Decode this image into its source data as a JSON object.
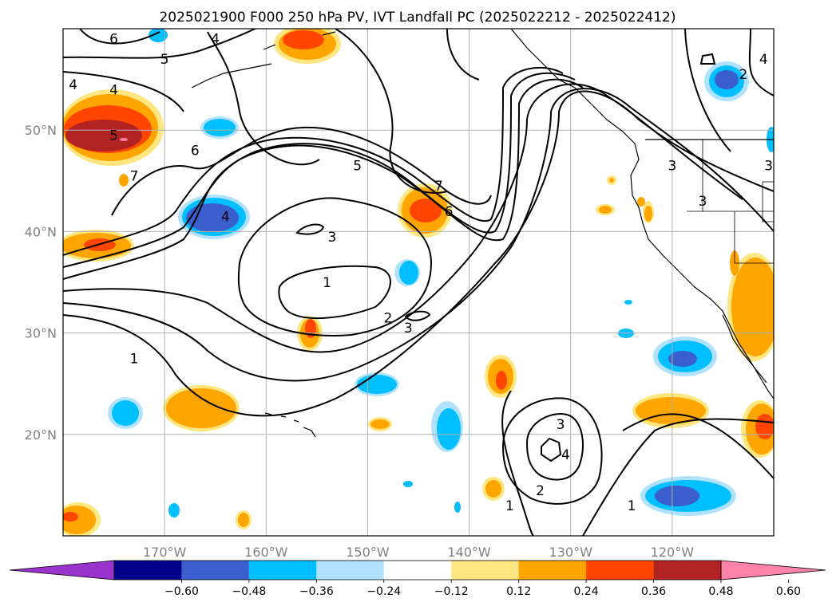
{
  "chart_data": {
    "type": "map-contour",
    "title": "2025021900 F000 250 hPa PV, IVT Landfall PC (2025022212 - 2025022412)",
    "map_extent": {
      "lon": [
        -180,
        -110
      ],
      "lat": [
        10,
        60
      ]
    },
    "grid": true,
    "x_ticks": [
      {
        "lon": -170,
        "label": "170°W"
      },
      {
        "lon": -160,
        "label": "160°W"
      },
      {
        "lon": -150,
        "label": "150°W"
      },
      {
        "lon": -140,
        "label": "140°W"
      },
      {
        "lon": -130,
        "label": "130°W"
      },
      {
        "lon": -120,
        "label": "120°W"
      }
    ],
    "y_ticks": [
      {
        "lat": 20,
        "label": "20°N"
      },
      {
        "lat": 30,
        "label": "30°N"
      },
      {
        "lat": 40,
        "label": "40°N"
      },
      {
        "lat": 50,
        "label": "50°N"
      }
    ],
    "colorbar": {
      "orientation": "horizontal",
      "extend": "both",
      "bounds": [
        -0.72,
        -0.6,
        -0.48,
        -0.36,
        -0.24,
        -0.12,
        0.12,
        0.24,
        0.36,
        0.48,
        0.6,
        0.72
      ],
      "colors": [
        "#9933cc",
        "#00008b",
        "#3a5fcd",
        "#00bfff",
        "#b0e2ff",
        "#ffffff",
        "#ffe680",
        "#ffa500",
        "#ff4500",
        "#b22222",
        "#ff82ab"
      ],
      "tick_values": [
        -0.6,
        -0.48,
        -0.36,
        -0.24,
        -0.12,
        0.12,
        0.24,
        0.36,
        0.48,
        0.6
      ],
      "tick_labels": [
        "−0.60",
        "−0.48",
        "−0.36",
        "−0.24",
        "−0.12",
        "0.12",
        "0.24",
        "0.36",
        "0.48",
        "0.60"
      ]
    },
    "pv_contour_labels": [
      {
        "text": "6",
        "lon": -175.0,
        "lat": 59.0
      },
      {
        "text": "4",
        "lon": -165.0,
        "lat": 59.0
      },
      {
        "text": "5",
        "lon": -170.0,
        "lat": 57.0
      },
      {
        "text": "4",
        "lon": -179.0,
        "lat": 54.5
      },
      {
        "text": "4",
        "lon": -175.0,
        "lat": 54.0
      },
      {
        "text": "5",
        "lon": -175.0,
        "lat": 49.5
      },
      {
        "text": "6",
        "lon": -167.0,
        "lat": 48.0
      },
      {
        "text": "7",
        "lon": -173.0,
        "lat": 45.5
      },
      {
        "text": "4",
        "lon": -164.0,
        "lat": 41.5
      },
      {
        "text": "5",
        "lon": -151.0,
        "lat": 46.5
      },
      {
        "text": "3",
        "lon": -153.5,
        "lat": 39.5
      },
      {
        "text": "7",
        "lon": -143.0,
        "lat": 44.5
      },
      {
        "text": "6",
        "lon": -142.0,
        "lat": 42.0
      },
      {
        "text": "1",
        "lon": -154.0,
        "lat": 35.0
      },
      {
        "text": "2",
        "lon": -148.0,
        "lat": 31.5
      },
      {
        "text": "3",
        "lon": -146.0,
        "lat": 30.5
      },
      {
        "text": "1",
        "lon": -173.0,
        "lat": 27.5
      },
      {
        "text": "3",
        "lon": -131.0,
        "lat": 21.0
      },
      {
        "text": "4",
        "lon": -130.5,
        "lat": 18.0
      },
      {
        "text": "2",
        "lon": -133.0,
        "lat": 14.5
      },
      {
        "text": "1",
        "lon": -136.0,
        "lat": 13.0
      },
      {
        "text": "1",
        "lon": -124.0,
        "lat": 13.0
      },
      {
        "text": "3",
        "lon": -120.0,
        "lat": 46.5
      },
      {
        "text": "3",
        "lon": -117.0,
        "lat": 43.0
      },
      {
        "text": "3",
        "lon": -110.5,
        "lat": 46.5
      },
      {
        "text": "2",
        "lon": -113.0,
        "lat": 55.5
      },
      {
        "text": "4",
        "lon": -111.0,
        "lat": 57.0
      }
    ]
  }
}
